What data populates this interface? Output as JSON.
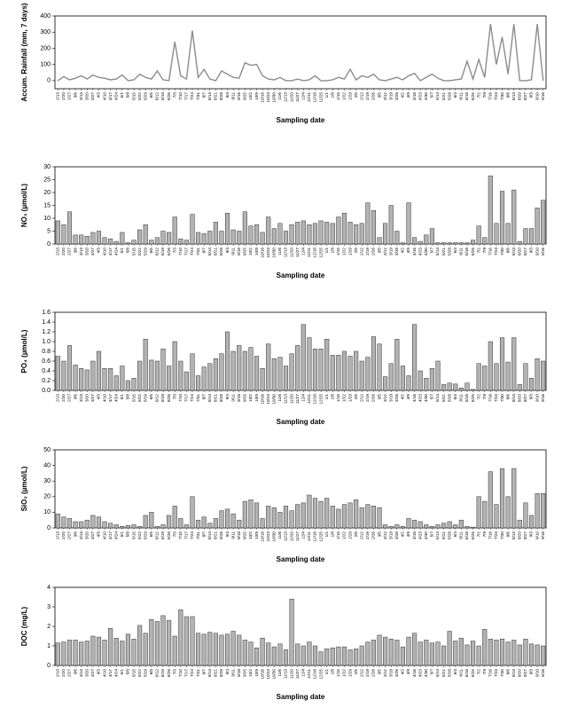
{
  "chart_data": [
    {
      "type": "line",
      "y_label": "Accum. Rainfall (mm, 7 days)",
      "x_label": "Sampling date",
      "color": "#8c8c8c",
      "categories": [
        "2/13",
        "2/20",
        "2/27",
        "3/6",
        "3/13",
        "3/20",
        "3/27",
        "4/3",
        "4/10",
        "4/17",
        "4/24",
        "5/1",
        "5/8",
        "5/15",
        "5/22",
        "5/29",
        "6/5",
        "6/12",
        "6/19",
        "6/26",
        "7/3",
        "7/10",
        "7/17",
        "7/24",
        "7/31",
        "8/7",
        "8/14",
        "8/21",
        "8/28",
        "9/4",
        "9/11",
        "9/18",
        "9/25",
        "10/2",
        "10/9",
        "10/16",
        "10/23",
        "10/30",
        "11/6",
        "11/13",
        "11/20",
        "11/27",
        "12/4",
        "12/11",
        "12/18",
        "12/25",
        "1/1",
        "1/8",
        "1/15",
        "1/22",
        "1/29",
        "2/5",
        "2/12",
        "2/19",
        "2/26",
        "3/5",
        "3/12",
        "3/19",
        "3/26",
        "4/2",
        "4/9",
        "4/16",
        "4/23",
        "4/30",
        "5/7",
        "5/14",
        "5/21",
        "5/28",
        "6/4",
        "6/11",
        "6/18",
        "6/25",
        "7/2",
        "7/9",
        "7/16",
        "7/23",
        "7/30",
        "8/6",
        "8/13",
        "8/20",
        "8/27",
        "9/3",
        "9/10",
        "9/16"
      ],
      "values": [
        0,
        25,
        5,
        15,
        30,
        10,
        35,
        20,
        15,
        5,
        10,
        35,
        0,
        5,
        40,
        20,
        10,
        60,
        5,
        0,
        240,
        30,
        10,
        310,
        20,
        70,
        10,
        0,
        60,
        40,
        20,
        15,
        110,
        95,
        100,
        30,
        10,
        5,
        20,
        0,
        0,
        10,
        0,
        5,
        30,
        0,
        0,
        5,
        20,
        10,
        70,
        5,
        30,
        20,
        40,
        5,
        0,
        10,
        20,
        5,
        30,
        45,
        0,
        20,
        40,
        15,
        0,
        0,
        5,
        10,
        120,
        10,
        130,
        20,
        350,
        100,
        270,
        40,
        350,
        0,
        0,
        5,
        350,
        0
      ],
      "ylim": [
        -50,
        400
      ],
      "yticks": [
        0,
        100,
        200,
        300,
        400
      ]
    },
    {
      "type": "bar",
      "y_label": "NO₃ (µmol/L)",
      "x_label": "Sampling date",
      "color": "#b3b3b3",
      "categories": [
        "2/13",
        "2/20",
        "2/27",
        "3/6",
        "3/13",
        "3/20",
        "3/27",
        "4/3",
        "4/10",
        "4/17",
        "4/24",
        "5/1",
        "5/8",
        "5/15",
        "5/22",
        "5/29",
        "6/5",
        "6/12",
        "6/19",
        "6/26",
        "7/3",
        "7/10",
        "7/17",
        "7/24",
        "7/31",
        "8/7",
        "8/14",
        "8/21",
        "8/28",
        "9/4",
        "9/11",
        "9/18",
        "9/25",
        "10/2",
        "10/9",
        "10/16",
        "10/23",
        "10/30",
        "11/6",
        "11/13",
        "11/20",
        "11/27",
        "12/4",
        "12/11",
        "12/18",
        "12/25",
        "1/1",
        "1/8",
        "1/15",
        "1/22",
        "1/29",
        "2/5",
        "2/12",
        "2/19",
        "2/26",
        "3/5",
        "3/12",
        "3/19",
        "3/26",
        "4/2",
        "4/9",
        "4/16",
        "4/23",
        "4/30",
        "5/7",
        "5/14",
        "5/21",
        "5/28",
        "6/4",
        "6/11",
        "6/18",
        "6/25",
        "7/2",
        "7/9",
        "7/16",
        "7/23",
        "7/30",
        "8/6",
        "8/13",
        "8/20",
        "8/27",
        "9/3",
        "9/10",
        "9/16"
      ],
      "values": [
        9,
        7.5,
        12.5,
        3.5,
        3.5,
        3,
        4.5,
        5,
        2.5,
        2,
        1,
        4.5,
        0.5,
        1.5,
        5.5,
        7.5,
        1.5,
        2.5,
        5,
        4.5,
        10.5,
        2,
        1.5,
        11.5,
        4.5,
        4,
        5,
        8.5,
        5,
        12,
        5.5,
        5,
        12.5,
        7,
        7.5,
        4.5,
        10.5,
        6,
        8,
        5,
        7.5,
        8.5,
        9,
        7.5,
        8,
        9,
        8.5,
        8,
        10.5,
        12,
        8.5,
        7.5,
        8,
        16,
        13,
        2.5,
        8,
        15,
        5,
        0.5,
        16,
        2.5,
        1,
        3.5,
        6,
        0.5,
        0.5,
        0.5,
        0.5,
        0.5,
        0.5,
        1.5,
        7,
        2.5,
        26.5,
        8,
        20.5,
        8,
        21,
        1,
        6,
        6,
        14,
        17
      ],
      "ylim": [
        0,
        30
      ],
      "yticks": [
        0,
        5,
        10,
        15,
        20,
        25,
        30
      ]
    },
    {
      "type": "bar",
      "y_label": "PO₄ (µmol/L)",
      "x_label": "Sampling date",
      "color": "#b3b3b3",
      "categories": [
        "2/13",
        "2/20",
        "2/27",
        "3/6",
        "3/13",
        "3/20",
        "3/27",
        "4/3",
        "4/10",
        "4/17",
        "4/24",
        "5/1",
        "5/8",
        "5/15",
        "5/22",
        "5/29",
        "6/5",
        "6/12",
        "6/19",
        "6/26",
        "7/3",
        "7/10",
        "7/17",
        "7/24",
        "7/31",
        "8/7",
        "8/14",
        "8/21",
        "8/28",
        "9/4",
        "9/11",
        "9/18",
        "9/25",
        "10/2",
        "10/9",
        "10/16",
        "10/23",
        "10/30",
        "11/6",
        "11/13",
        "11/20",
        "11/27",
        "12/4",
        "12/11",
        "12/18",
        "12/25",
        "1/1",
        "1/8",
        "1/15",
        "1/22",
        "1/29",
        "2/5",
        "2/12",
        "2/19",
        "2/26",
        "3/5",
        "3/12",
        "3/19",
        "3/26",
        "4/2",
        "4/9",
        "4/16",
        "4/23",
        "4/30",
        "5/7",
        "5/14",
        "5/21",
        "5/28",
        "6/4",
        "6/11",
        "6/18",
        "6/25",
        "7/2",
        "7/9",
        "7/16",
        "7/23",
        "7/30",
        "8/6",
        "8/13",
        "8/20",
        "8/27",
        "9/3",
        "9/10",
        "9/16"
      ],
      "values": [
        0.7,
        0.6,
        0.92,
        0.52,
        0.45,
        0.42,
        0.6,
        0.8,
        0.45,
        0.45,
        0.3,
        0.5,
        0.2,
        0.25,
        0.6,
        1.05,
        0.62,
        0.6,
        0.85,
        0.5,
        1.0,
        0.6,
        0.38,
        0.75,
        0.3,
        0.48,
        0.55,
        0.65,
        0.75,
        1.2,
        0.8,
        0.92,
        0.8,
        0.88,
        0.7,
        0.45,
        0.95,
        0.65,
        0.68,
        0.5,
        0.75,
        0.92,
        1.35,
        1.08,
        0.85,
        0.85,
        1.05,
        0.72,
        0.72,
        0.8,
        0.7,
        0.8,
        0.6,
        0.68,
        1.1,
        0.95,
        0.28,
        0.55,
        1.05,
        0.5,
        0.3,
        1.35,
        0.4,
        0.25,
        0.45,
        0.6,
        0.12,
        0.15,
        0.13,
        0.05,
        0.15,
        0.02,
        0.55,
        0.5,
        1.0,
        0.55,
        1.08,
        0.58,
        1.08,
        0.12,
        0.55,
        0.25,
        0.65,
        0.6
      ],
      "ylim": [
        0,
        1.6
      ],
      "yticks": [
        {
          "value": 0,
          "label": "0.0"
        },
        0.2,
        0.4,
        0.6,
        0.8,
        {
          "value": 1,
          "label": "1.0"
        },
        1.2,
        1.4,
        1.6
      ]
    },
    {
      "type": "bar",
      "y_label": "SiO₂ (µmol/L)",
      "x_label": "Sampling date",
      "color": "#b3b3b3",
      "categories": [
        "2/13",
        "2/20",
        "2/27",
        "3/6",
        "3/13",
        "3/20",
        "3/27",
        "4/3",
        "4/10",
        "4/17",
        "4/24",
        "5/1",
        "5/8",
        "5/15",
        "5/22",
        "5/29",
        "6/5",
        "6/12",
        "6/19",
        "6/26",
        "7/3",
        "7/10",
        "7/17",
        "7/24",
        "7/31",
        "8/7",
        "8/14",
        "8/21",
        "8/28",
        "9/4",
        "9/11",
        "9/18",
        "9/25",
        "10/2",
        "10/9",
        "10/16",
        "10/23",
        "10/30",
        "11/6",
        "11/13",
        "11/20",
        "11/27",
        "12/4",
        "12/11",
        "12/18",
        "12/25",
        "1/1",
        "1/8",
        "1/15",
        "1/22",
        "1/29",
        "2/5",
        "2/12",
        "2/19",
        "2/26",
        "3/5",
        "3/12",
        "3/19",
        "3/26",
        "4/2",
        "4/9",
        "4/16",
        "4/23",
        "4/30",
        "5/7",
        "5/14",
        "5/21",
        "5/28",
        "6/4",
        "6/11",
        "6/18",
        "6/25",
        "7/2",
        "7/9",
        "7/16",
        "7/23",
        "7/30",
        "8/6",
        "8/13",
        "8/20",
        "8/27",
        "9/3",
        "9/10",
        "9/16"
      ],
      "values": [
        9,
        7,
        6,
        4,
        4,
        5,
        8,
        7,
        4,
        3,
        2,
        1,
        1.5,
        2,
        1,
        8,
        10,
        1,
        2,
        8,
        14,
        6,
        2,
        20,
        5,
        7,
        3,
        6,
        11,
        12,
        9,
        5,
        17,
        18,
        16,
        6,
        14,
        13,
        10,
        14,
        11,
        15,
        16,
        21,
        19,
        17,
        19,
        14,
        12,
        15,
        16,
        18,
        13,
        15,
        14,
        13,
        2,
        1,
        2,
        1,
        6,
        5,
        4,
        2,
        1,
        2,
        3,
        4,
        2,
        5,
        1,
        0.5,
        20,
        17,
        36,
        15,
        38,
        20,
        38,
        5,
        16,
        8,
        22,
        22
      ],
      "ylim": [
        0,
        50
      ],
      "yticks": [
        0,
        10,
        20,
        30,
        40,
        50
      ]
    },
    {
      "type": "bar",
      "y_label": "DOC (mg/L)",
      "x_label": "Sampling date",
      "color": "#b3b3b3",
      "categories": [
        "2/13",
        "2/20",
        "2/27",
        "3/6",
        "3/13",
        "3/20",
        "3/27",
        "4/3",
        "4/10",
        "4/17",
        "4/24",
        "5/1",
        "5/8",
        "5/15",
        "5/22",
        "5/29",
        "6/5",
        "6/12",
        "6/19",
        "6/26",
        "7/3",
        "7/10",
        "7/17",
        "7/24",
        "7/31",
        "8/7",
        "8/14",
        "8/21",
        "8/28",
        "9/4",
        "9/11",
        "9/18",
        "9/25",
        "10/2",
        "10/9",
        "10/16",
        "10/23",
        "10/30",
        "11/6",
        "11/13",
        "11/20",
        "11/27",
        "12/4",
        "12/11",
        "12/18",
        "12/25",
        "1/1",
        "1/8",
        "1/15",
        "1/22",
        "1/29",
        "2/5",
        "2/12",
        "2/19",
        "2/26",
        "3/5",
        "3/12",
        "3/19",
        "3/26",
        "4/2",
        "4/9",
        "4/16",
        "4/23",
        "4/30",
        "5/7",
        "5/14",
        "5/21",
        "5/28",
        "6/4",
        "6/11",
        "6/18",
        "6/25",
        "7/2",
        "7/9",
        "7/16",
        "7/23",
        "7/30",
        "8/6",
        "8/13",
        "8/20",
        "8/27",
        "9/3",
        "9/10",
        "9/16"
      ],
      "values": [
        1.15,
        1.2,
        1.3,
        1.3,
        1.2,
        1.25,
        1.5,
        1.45,
        1.3,
        1.9,
        1.4,
        1.25,
        1.6,
        1.35,
        2.05,
        1.65,
        2.35,
        2.25,
        2.55,
        2.3,
        1.5,
        2.85,
        2.5,
        2.5,
        1.65,
        1.6,
        1.7,
        1.65,
        1.55,
        1.6,
        1.75,
        1.55,
        1.3,
        1.2,
        0.9,
        1.4,
        1.15,
        0.95,
        1.1,
        0.8,
        3.4,
        1.1,
        1.0,
        1.2,
        1.0,
        0.7,
        0.85,
        0.9,
        0.95,
        0.95,
        0.8,
        0.85,
        1.0,
        1.2,
        1.3,
        1.55,
        1.45,
        1.35,
        1.3,
        0.95,
        1.45,
        1.65,
        1.2,
        1.3,
        1.15,
        1.2,
        1.0,
        1.75,
        1.25,
        1.4,
        1.05,
        1.25,
        1.0,
        1.85,
        1.35,
        1.3,
        1.35,
        1.2,
        1.3,
        1.05,
        1.35,
        1.1,
        1.05,
        1.0
      ],
      "ylim": [
        0,
        4
      ],
      "yticks": [
        0,
        1,
        2,
        3,
        4
      ]
    }
  ]
}
